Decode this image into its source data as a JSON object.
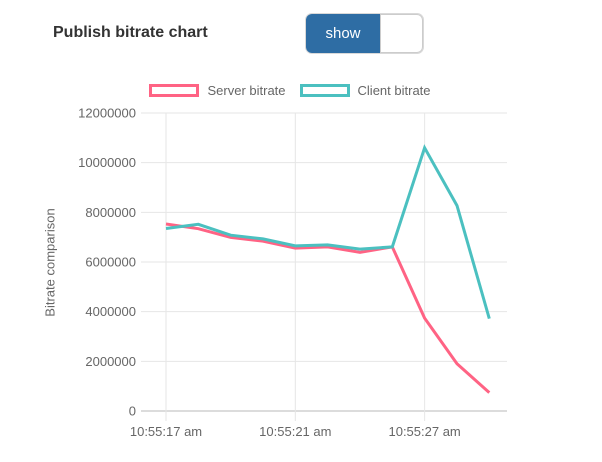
{
  "header": {
    "title": "Publish bitrate chart",
    "toggle": {
      "state_label": "show",
      "on_color": "#2e6da4"
    }
  },
  "chart_data": {
    "type": "line",
    "title": "",
    "xlabel": "",
    "ylabel": "Bitrate comparison",
    "ylim": [
      0,
      12000000
    ],
    "y_ticks": [
      0,
      2000000,
      4000000,
      6000000,
      8000000,
      10000000,
      12000000
    ],
    "num_points": 11,
    "x_tick_labels": [
      "10:55:17 am",
      "10:55:21 am",
      "10:55:27 am"
    ],
    "x_tick_indices": [
      0,
      4,
      8
    ],
    "grid": true,
    "legend_position": "top",
    "line_width": 3,
    "fill": false,
    "colors": {
      "grid": "#e6e6e6",
      "zero_line": "#b9b9b9",
      "tick_text": "#666666",
      "legend_box_fill": "#ffffff"
    },
    "series": [
      {
        "name": "Server bitrate",
        "color": "#ff6384",
        "values": [
          7530000,
          7340000,
          6990000,
          6840000,
          6560000,
          6610000,
          6390000,
          6610000,
          3740000,
          1900000,
          740000
        ]
      },
      {
        "name": "Client bitrate",
        "color": "#4bc0c0",
        "values": [
          7350000,
          7520000,
          7080000,
          6930000,
          6650000,
          6690000,
          6520000,
          6610000,
          10600000,
          8270000,
          3720000
        ]
      }
    ]
  }
}
